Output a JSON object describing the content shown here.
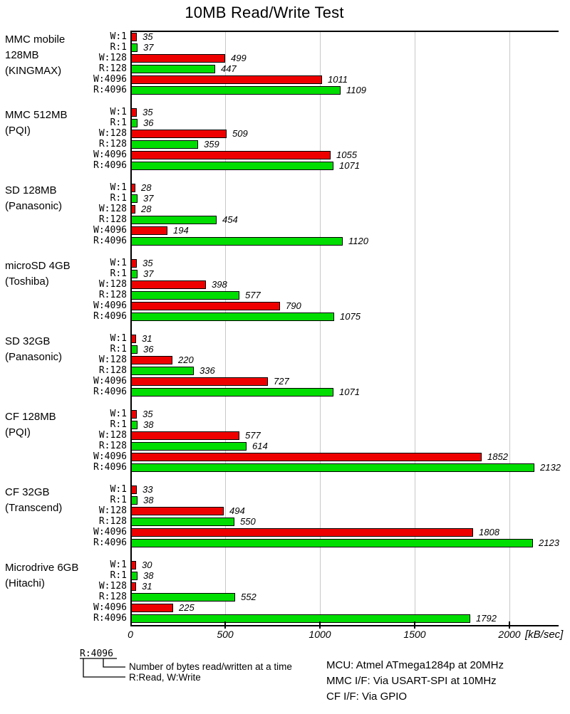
{
  "title": "10MB Read/Write Test",
  "chart_data": {
    "type": "bar",
    "orientation": "horizontal",
    "title": "10MB Read/Write Test",
    "xlabel": "[kB/sec]",
    "xlim": [
      0,
      2260
    ],
    "x_ticks": [
      0,
      500,
      1000,
      1500,
      2000
    ],
    "grid": true,
    "bar_labels": [
      "W:1",
      "R:1",
      "W:128",
      "R:128",
      "W:4096",
      "R:4096"
    ],
    "series_colors": {
      "write": "#ee0000",
      "read": "#00dd00"
    },
    "groups": [
      {
        "label_lines": [
          "MMC mobile",
          "128MB",
          "(KINGMAX)"
        ],
        "values": [
          35,
          37,
          499,
          447,
          1011,
          1109
        ]
      },
      {
        "label_lines": [
          "MMC 512MB",
          "(PQI)"
        ],
        "values": [
          35,
          36,
          509,
          359,
          1055,
          1071
        ]
      },
      {
        "label_lines": [
          "SD 128MB",
          "(Panasonic)"
        ],
        "values": [
          28,
          37,
          28,
          454,
          194,
          1120
        ]
      },
      {
        "label_lines": [
          "microSD 4GB",
          "(Toshiba)"
        ],
        "values": [
          35,
          37,
          398,
          577,
          790,
          1075
        ]
      },
      {
        "label_lines": [
          "SD 32GB",
          "(Panasonic)"
        ],
        "values": [
          31,
          36,
          220,
          336,
          727,
          1071
        ]
      },
      {
        "label_lines": [
          "CF 128MB",
          "(PQI)"
        ],
        "values": [
          35,
          38,
          577,
          614,
          1852,
          2132
        ]
      },
      {
        "label_lines": [
          "CF 32GB",
          "(Transcend)"
        ],
        "values": [
          33,
          38,
          494,
          550,
          1808,
          2123
        ]
      },
      {
        "label_lines": [
          "Microdrive 6GB",
          "(Hitachi)"
        ],
        "values": [
          30,
          38,
          31,
          552,
          225,
          1792
        ]
      }
    ]
  },
  "legend": {
    "example": "R:4096",
    "bytes_note": "Number of bytes read/written at a time",
    "rw_note": "R:Read, W:Write"
  },
  "footnotes": [
    "MCU: Atmel ATmega1284p at 20MHz",
    "MMC I/F: Via USART-SPI at 10MHz",
    "CF I/F: Via GPIO"
  ]
}
